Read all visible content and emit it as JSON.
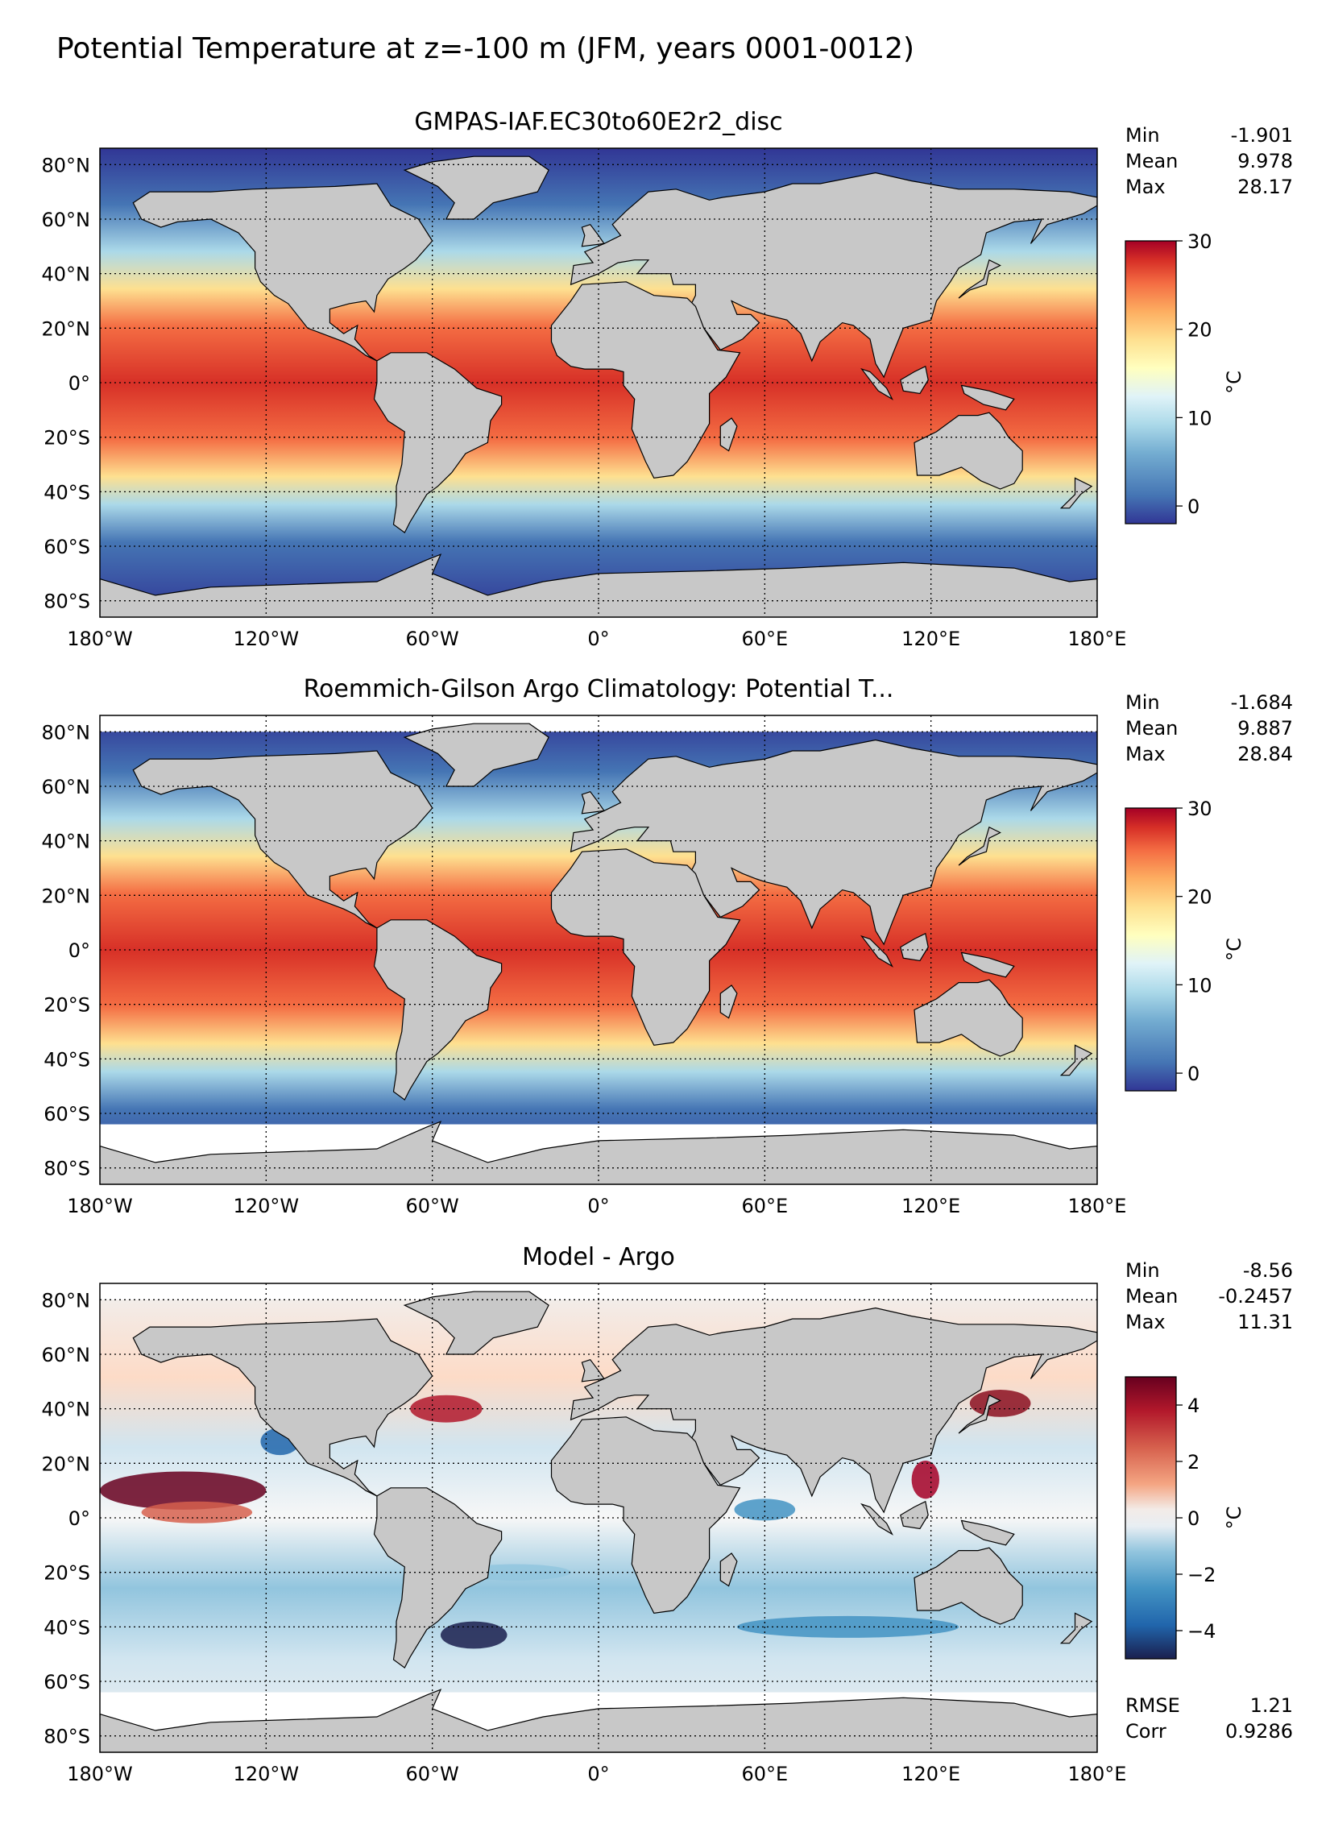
{
  "figure": {
    "title": "Potential Temperature at z=-100 m (JFM, years 0001-0012)"
  },
  "axes_labels": {
    "lon": [
      "180°W",
      "120°W",
      "60°W",
      "0°",
      "60°E",
      "120°E",
      "180°E"
    ],
    "lat": [
      "80°N",
      "60°N",
      "40°N",
      "20°N",
      "0°",
      "20°S",
      "40°S",
      "60°S",
      "80°S"
    ]
  },
  "colors": {
    "land": "#c8c8c8",
    "nodata": "#ffffff",
    "temp_scale": [
      "#313695",
      "#4575b4",
      "#74add1",
      "#abd9e9",
      "#e0f3f8",
      "#ffffbf",
      "#fee090",
      "#fdae61",
      "#f46d43",
      "#d73027",
      "#a50026"
    ],
    "diff_scale": [
      "#1a1f4e",
      "#2166ac",
      "#4393c3",
      "#92c5de",
      "#d1e5f0",
      "#f0f0f0",
      "#fddbc7",
      "#f4a582",
      "#d6604d",
      "#b2182b",
      "#67001f"
    ]
  },
  "panels": [
    {
      "title": "GMPAS-IAF.EC30to60E2r2_disc",
      "stats": [
        {
          "label": "Min",
          "value": "-1.901"
        },
        {
          "label": "Mean",
          "value": "9.978"
        },
        {
          "label": "Max",
          "value": "28.17"
        }
      ],
      "colorbar": {
        "ticks": [
          "30",
          "20",
          "10",
          "0"
        ],
        "unit": "°C",
        "range": [
          -2,
          30
        ]
      }
    },
    {
      "title": "Roemmich-Gilson Argo Climatology: Potential T...",
      "stats": [
        {
          "label": "Min",
          "value": "-1.684"
        },
        {
          "label": "Mean",
          "value": "9.887"
        },
        {
          "label": "Max",
          "value": "28.84"
        }
      ],
      "colorbar": {
        "ticks": [
          "30",
          "20",
          "10",
          "0"
        ],
        "unit": "°C",
        "range": [
          -2,
          30
        ]
      }
    },
    {
      "title": "Model - Argo",
      "stats": [
        {
          "label": "Min",
          "value": "-8.56"
        },
        {
          "label": "Mean",
          "value": "-0.2457"
        },
        {
          "label": "Max",
          "value": "11.31"
        }
      ],
      "colorbar": {
        "ticks": [
          "4",
          "2",
          "0",
          "−2",
          "−4"
        ],
        "unit": "°C",
        "range": [
          -5,
          5
        ]
      },
      "footer_stats": [
        {
          "label": "RMSE",
          "value": "1.21"
        },
        {
          "label": "Corr",
          "value": "0.9286"
        }
      ]
    }
  ]
}
